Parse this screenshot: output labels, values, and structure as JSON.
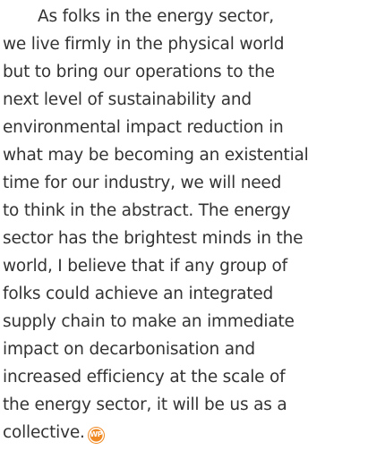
{
  "paragraph": {
    "lines": [
      "As folks in the energy sector,",
      "we live firmly in the physical world",
      "but to bring our operations to the",
      "next level of sustainability and",
      "environmental impact reduction in",
      "what may be becoming an existential",
      "time for our industry, we will need",
      "to think in the abstract. The energy",
      "sector has the brightest minds in the",
      "world, I believe that if any group of",
      "folks could achieve an integrated",
      "supply chain to make an immediate",
      "impact on decarbonisation and",
      "increased efficiency at the scale of",
      "the energy sector, it will be us as a",
      "collective."
    ],
    "end_mark": "WP"
  }
}
